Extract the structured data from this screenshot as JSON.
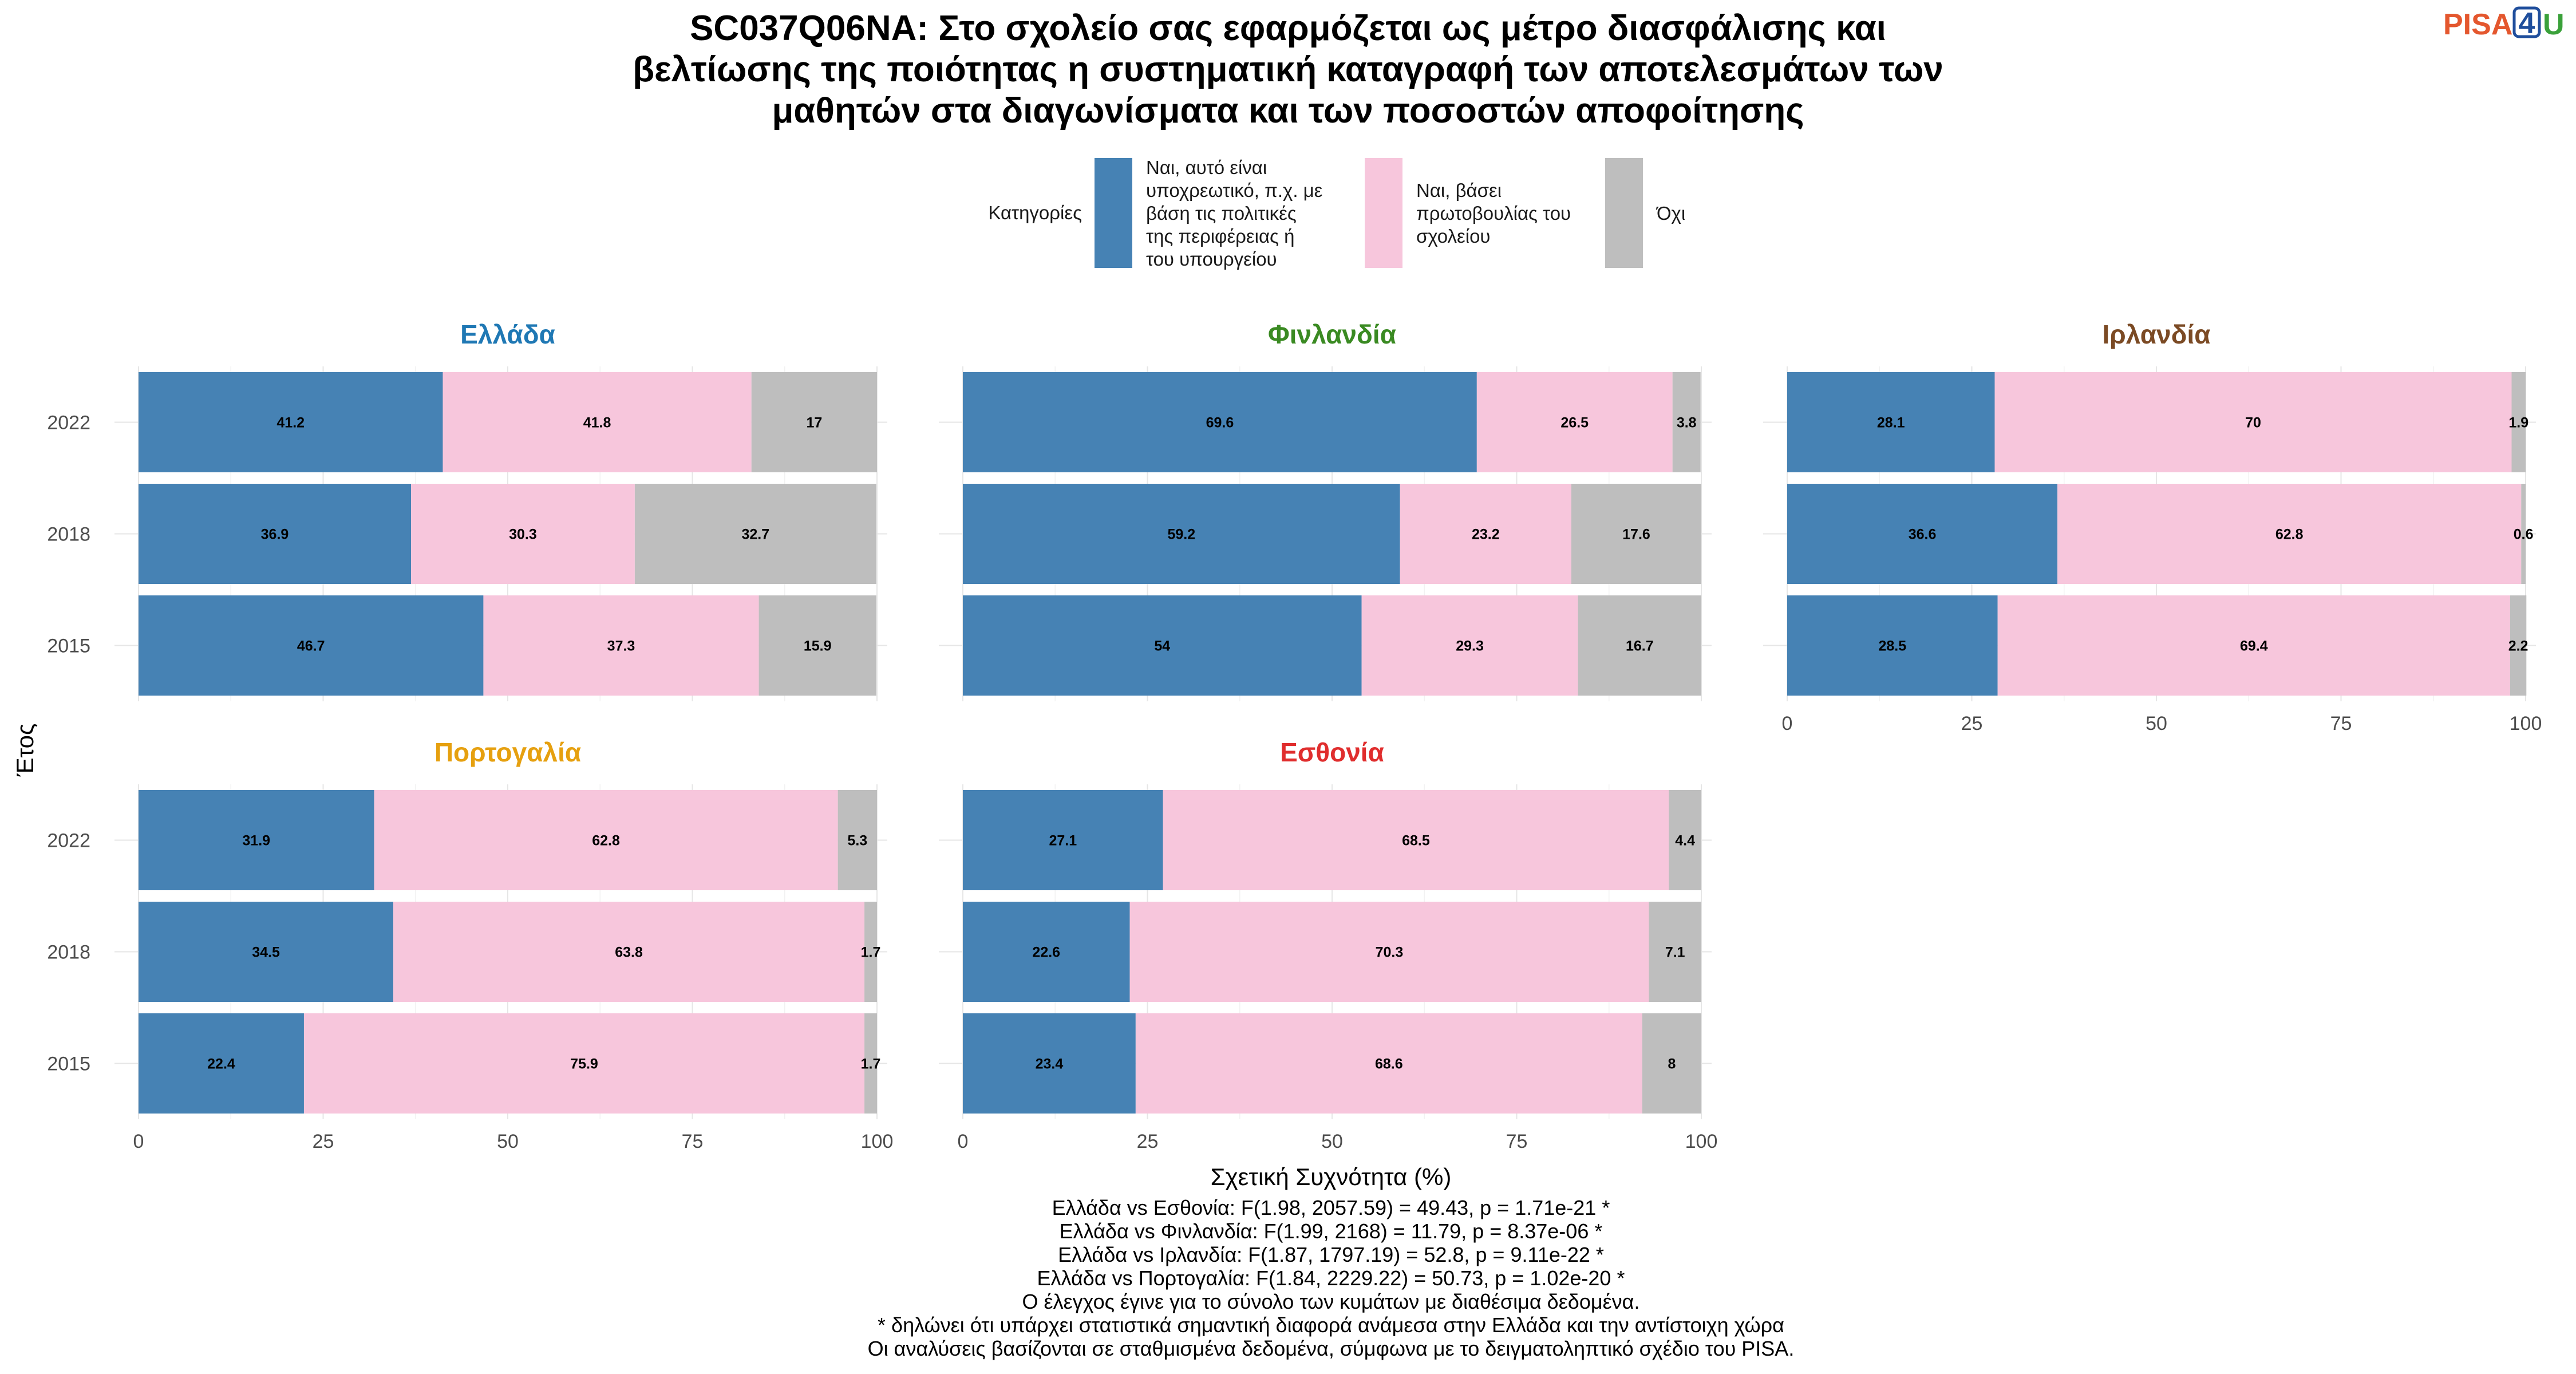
{
  "title_lines": [
    "SC037Q06NA: Στο σχολείο σας εφαρμόζεται ως μέτρο διασφάλισης και",
    "βελτίωσης της ποιότητας η συστηματική καταγραφή των αποτελεσμάτων των",
    "μαθητών στα διαγωνίσματα και των ποσοστών αποφοίτησης"
  ],
  "logo": {
    "text": "PISA",
    "number": "4",
    "letter": "U",
    "colors": {
      "text": "#e4572e",
      "number": "#1f4e9c",
      "letter": "#3aa13a"
    }
  },
  "legend": {
    "title": "Κατηγορίες",
    "items": [
      {
        "color": "#4682B4",
        "lines": [
          "Ναι, αυτό είναι",
          "υποχρεωτικό, π.χ. με",
          "βάση τις πολιτικές",
          "της περιφέρειας ή",
          "του υπουργείου"
        ]
      },
      {
        "color": "#F7C6DC",
        "lines": [
          "Ναι, βάσει",
          "πρωτοβουλίας του",
          "σχολείου"
        ]
      },
      {
        "color": "#BEBEBE",
        "lines": [
          "Όχι"
        ]
      }
    ]
  },
  "chart_data": {
    "type": "bar",
    "orientation": "horizontal",
    "stacked": true,
    "xlabel": "Σχετική Συχνότητα (%)",
    "ylabel": "Έτος",
    "xlim": [
      0,
      100
    ],
    "xticks": [
      "0",
      "25",
      "50",
      "75",
      "100"
    ],
    "categories": [
      "2022",
      "2018",
      "2015"
    ],
    "series_names": [
      "Ναι, αυτό είναι υποχρεωτικό, π.χ. με βάση τις πολιτικές της περιφέρειας ή του υπουργείου",
      "Ναι, βάσει πρωτοβουλίας του σχολείου",
      "Όχι"
    ],
    "series_colors": [
      "#4682B4",
      "#F7C6DC",
      "#BEBEBE"
    ],
    "grid": true,
    "legend_position": "top",
    "facets": [
      {
        "name": "Ελλάδα",
        "color": "#1f78b4",
        "rows": [
          {
            "year": "2022",
            "values": [
              41.2,
              41.8,
              17
            ],
            "labels": [
              "41.2",
              "41.8",
              "17"
            ]
          },
          {
            "year": "2018",
            "values": [
              36.9,
              30.3,
              32.7
            ],
            "labels": [
              "36.9",
              "30.3",
              "32.7"
            ]
          },
          {
            "year": "2015",
            "values": [
              46.7,
              37.3,
              15.9
            ],
            "labels": [
              "46.7",
              "37.3",
              "15.9"
            ]
          }
        ]
      },
      {
        "name": "Φινλανδία",
        "color": "#3a8a22",
        "rows": [
          {
            "year": "2022",
            "values": [
              69.6,
              26.5,
              3.8
            ],
            "labels": [
              "69.6",
              "26.5",
              "3.8"
            ]
          },
          {
            "year": "2018",
            "values": [
              59.2,
              23.2,
              17.6
            ],
            "labels": [
              "59.2",
              "23.2",
              "17.6"
            ]
          },
          {
            "year": "2015",
            "values": [
              54,
              29.3,
              16.7
            ],
            "labels": [
              "54",
              "29.3",
              "16.7"
            ]
          }
        ]
      },
      {
        "name": "Ιρλανδία",
        "color": "#7b4a24",
        "rows": [
          {
            "year": "2022",
            "values": [
              28.1,
              70,
              1.9
            ],
            "labels": [
              "28.1",
              "70",
              "1.9"
            ]
          },
          {
            "year": "2018",
            "values": [
              36.6,
              62.8,
              0.6
            ],
            "labels": [
              "36.6",
              "62.8",
              "0.6"
            ]
          },
          {
            "year": "2015",
            "values": [
              28.5,
              69.4,
              2.2
            ],
            "labels": [
              "28.5",
              "69.4",
              "2.2"
            ]
          }
        ]
      },
      {
        "name": "Πορτογαλία",
        "color": "#e6a00f",
        "rows": [
          {
            "year": "2022",
            "values": [
              31.9,
              62.8,
              5.3
            ],
            "labels": [
              "31.9",
              "62.8",
              "5.3"
            ]
          },
          {
            "year": "2018",
            "values": [
              34.5,
              63.8,
              1.7
            ],
            "labels": [
              "34.5",
              "63.8",
              "1.7"
            ]
          },
          {
            "year": "2015",
            "values": [
              22.4,
              75.9,
              1.7
            ],
            "labels": [
              "22.4",
              "75.9",
              "1.7"
            ]
          }
        ]
      },
      {
        "name": "Εσθονία",
        "color": "#e02d2d",
        "rows": [
          {
            "year": "2022",
            "values": [
              27.1,
              68.5,
              4.4
            ],
            "labels": [
              "27.1",
              "68.5",
              "4.4"
            ]
          },
          {
            "year": "2018",
            "values": [
              22.6,
              70.3,
              7.1
            ],
            "labels": [
              "22.6",
              "70.3",
              "7.1"
            ]
          },
          {
            "year": "2015",
            "values": [
              23.4,
              68.6,
              8
            ],
            "labels": [
              "23.4",
              "68.6",
              "8"
            ]
          }
        ]
      }
    ]
  },
  "caption_lines": [
    "Ελλάδα vs Εσθονία: F(1.98, 2057.59) = 49.43, p = 1.71e-21 *",
    "Ελλάδα vs Φινλανδία: F(1.99, 2168) = 11.79, p = 8.37e-06 *",
    "Ελλάδα vs Ιρλανδία: F(1.87, 1797.19) = 52.8, p = 9.11e-22 *",
    "Ελλάδα vs Πορτογαλία: F(1.84, 2229.22) = 50.73, p = 1.02e-20 *",
    "Ο έλεγχος έγινε για το σύνολο των κυμάτων με διαθέσιμα δεδομένα.",
    "* δηλώνει ότι υπάρχει στατιστικά σημαντική διαφορά ανάμεσα στην Ελλάδα και την αντίστοιχη χώρα",
    "Οι αναλύσεις βασίζονται σε σταθμισμένα δεδομένα, σύμφωνα με το δειγματοληπτικό σχέδιο του PISA."
  ]
}
